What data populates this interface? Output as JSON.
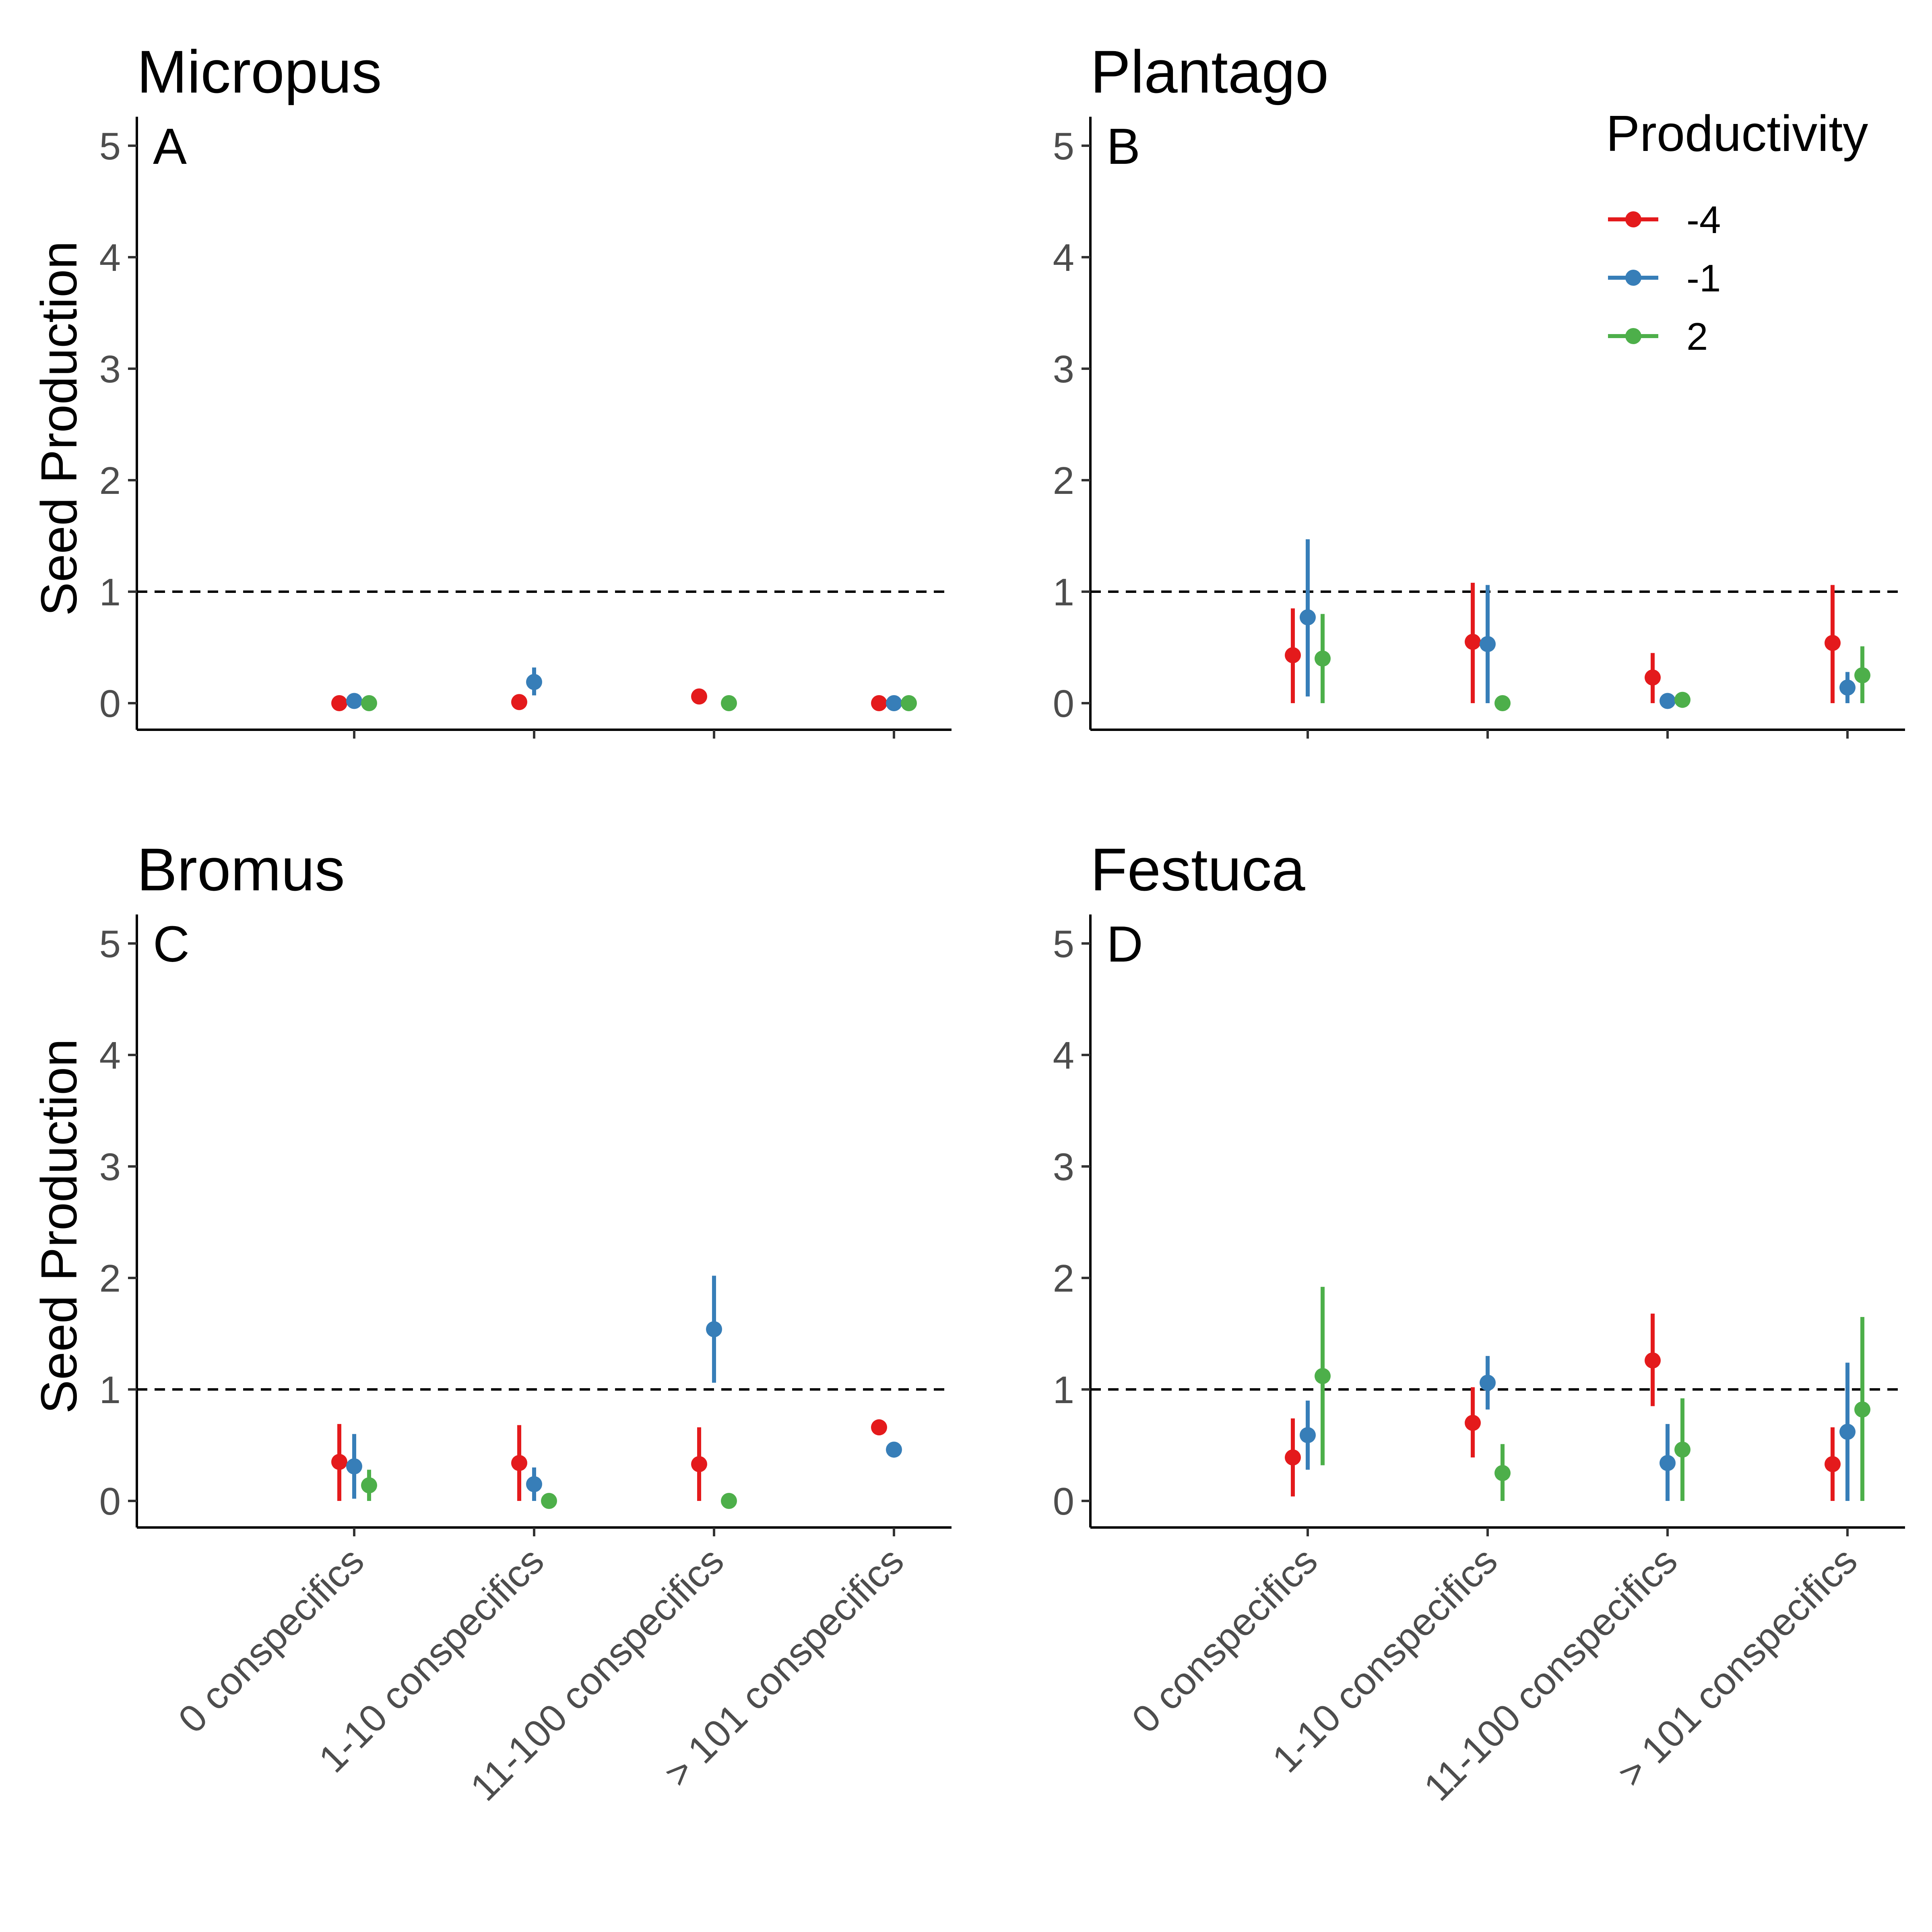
{
  "chart_data": {
    "type": "pointrange",
    "ylabel": "Seed Production",
    "categories": [
      "0 conspecifics",
      "1-10 conspecifics",
      "11-100 conspecifics",
      "> 101 conspecifics"
    ],
    "ylim": [
      0,
      5
    ],
    "yticks": [
      "0",
      "1",
      "2",
      "3",
      "4",
      "5"
    ],
    "reference_line": 1,
    "legend": {
      "title": "Productivity",
      "placement": "top-right of panel B",
      "entries": [
        {
          "label": "-4",
          "color": "#e41a1c"
        },
        {
          "label": "-1",
          "color": "#377eb8"
        },
        {
          "label": "2",
          "color": "#4daf4a"
        }
      ]
    },
    "panels": [
      {
        "title": "Micropus",
        "letter": "A",
        "series": [
          {
            "name": "-4",
            "values": [
              0.0,
              0.01,
              0.06,
              0.0
            ],
            "lower": [
              0.0,
              0.0,
              0.06,
              0.0
            ],
            "upper": [
              0.0,
              0.01,
              0.06,
              0.0
            ]
          },
          {
            "name": "-1",
            "values": [
              0.02,
              0.19,
              null,
              0.0
            ],
            "lower": [
              0.0,
              0.07,
              null,
              0.0
            ],
            "upper": [
              0.03,
              0.32,
              null,
              0.0
            ]
          },
          {
            "name": "2",
            "values": [
              0.0,
              null,
              0.0,
              0.0
            ],
            "lower": [
              0.0,
              null,
              0.0,
              0.0
            ],
            "upper": [
              0.0,
              null,
              0.0,
              0.0
            ]
          }
        ]
      },
      {
        "title": "Plantago",
        "letter": "B",
        "series": [
          {
            "name": "-4",
            "values": [
              0.43,
              0.55,
              0.23,
              0.54
            ],
            "lower": [
              0.0,
              0.0,
              0.0,
              0.0
            ],
            "upper": [
              0.85,
              1.08,
              0.45,
              1.06
            ]
          },
          {
            "name": "-1",
            "values": [
              0.77,
              0.53,
              0.02,
              0.14
            ],
            "lower": [
              0.06,
              0.0,
              0.0,
              0.0
            ],
            "upper": [
              1.47,
              1.06,
              0.04,
              0.28
            ]
          },
          {
            "name": "2",
            "values": [
              0.4,
              0.0,
              0.03,
              0.25
            ],
            "lower": [
              0.0,
              0.0,
              0.02,
              0.0
            ],
            "upper": [
              0.8,
              0.0,
              0.05,
              0.51
            ]
          }
        ]
      },
      {
        "title": "Bromus",
        "letter": "C",
        "series": [
          {
            "name": "-4",
            "values": [
              0.35,
              0.34,
              0.33,
              0.66
            ],
            "lower": [
              0.0,
              0.0,
              0.0,
              0.66
            ],
            "upper": [
              0.69,
              0.68,
              0.66,
              0.66
            ]
          },
          {
            "name": "-1",
            "values": [
              0.31,
              0.15,
              1.54,
              0.46
            ],
            "lower": [
              0.02,
              0.0,
              1.06,
              0.46
            ],
            "upper": [
              0.6,
              0.3,
              2.02,
              0.46
            ]
          },
          {
            "name": "2",
            "values": [
              0.14,
              0.0,
              0.0,
              null
            ],
            "lower": [
              0.0,
              0.0,
              0.0,
              null
            ],
            "upper": [
              0.28,
              0.0,
              0.0,
              null
            ]
          }
        ]
      },
      {
        "title": "Festuca",
        "letter": "D",
        "series": [
          {
            "name": "-4",
            "values": [
              0.39,
              0.7,
              1.26,
              0.33
            ],
            "lower": [
              0.04,
              0.39,
              0.85,
              0.0
            ],
            "upper": [
              0.74,
              1.02,
              1.68,
              0.66
            ]
          },
          {
            "name": "-1",
            "values": [
              0.59,
              1.06,
              0.34,
              0.62
            ],
            "lower": [
              0.28,
              0.82,
              0.0,
              0.0
            ],
            "upper": [
              0.9,
              1.3,
              0.69,
              1.24
            ]
          },
          {
            "name": "2",
            "values": [
              1.12,
              0.25,
              0.46,
              0.82
            ],
            "lower": [
              0.32,
              0.0,
              0.0,
              0.0
            ],
            "upper": [
              1.92,
              0.51,
              0.92,
              1.65
            ]
          }
        ]
      }
    ]
  }
}
